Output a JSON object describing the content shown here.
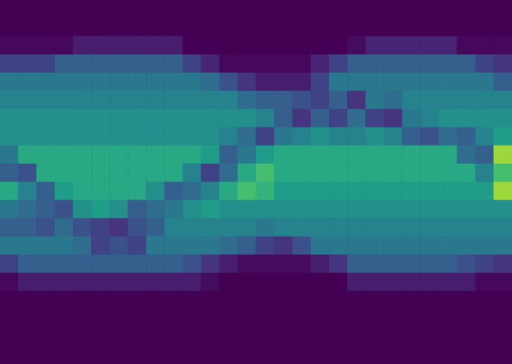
{
  "chart_data": {
    "type": "heatmap",
    "tick_labels": false,
    "grid": false,
    "color_range": [
      0,
      1
    ],
    "cells": [
      [
        0,
        0,
        0,
        0,
        0,
        0,
        0,
        0,
        0,
        0,
        0,
        0,
        0,
        0,
        0,
        0,
        0,
        0,
        0,
        0,
        0,
        0,
        0,
        0,
        0,
        0,
        0,
        0
      ],
      [
        0,
        0,
        0,
        0,
        0,
        0,
        0,
        0,
        0,
        0,
        0,
        0,
        0,
        0,
        0,
        0,
        0,
        0,
        0,
        0,
        0,
        0,
        0,
        0,
        0,
        0,
        0,
        0
      ],
      [
        0.02,
        0.02,
        0.02,
        0.02,
        0.08,
        0.08,
        0.08,
        0.08,
        0.08,
        0.08,
        0,
        0,
        0,
        0,
        0,
        0,
        0,
        0,
        0,
        0.03,
        0.1,
        0.1,
        0.1,
        0.1,
        0.1,
        0.02,
        0.02,
        0.02
      ],
      [
        0.2,
        0.2,
        0.2,
        0.3,
        0.3,
        0.3,
        0.3,
        0.3,
        0.3,
        0.3,
        0.2,
        0.1,
        0.02,
        0.02,
        0.02,
        0.02,
        0.02,
        0.1,
        0.2,
        0.3,
        0.3,
        0.3,
        0.3,
        0.3,
        0.3,
        0.3,
        0.2,
        0.15
      ],
      [
        0.4,
        0.4,
        0.4,
        0.4,
        0.4,
        0.4,
        0.4,
        0.4,
        0.4,
        0.4,
        0.4,
        0.35,
        0.25,
        0.15,
        0.08,
        0.08,
        0.08,
        0.2,
        0.4,
        0.4,
        0.4,
        0.4,
        0.4,
        0.4,
        0.4,
        0.4,
        0.4,
        0.3
      ],
      [
        0.45,
        0.45,
        0.45,
        0.45,
        0.45,
        0.45,
        0.45,
        0.45,
        0.45,
        0.45,
        0.45,
        0.45,
        0.45,
        0.35,
        0.3,
        0.3,
        0.25,
        0.2,
        0.3,
        0.15,
        0.4,
        0.35,
        0.45,
        0.45,
        0.45,
        0.45,
        0.45,
        0.45
      ],
      [
        0.5,
        0.5,
        0.5,
        0.5,
        0.5,
        0.5,
        0.5,
        0.5,
        0.5,
        0.5,
        0.5,
        0.5,
        0.5,
        0.5,
        0.45,
        0.3,
        0.15,
        0.3,
        0.2,
        0.35,
        0.2,
        0.15,
        0.4,
        0.45,
        0.5,
        0.5,
        0.5,
        0.5
      ],
      [
        0.5,
        0.5,
        0.5,
        0.5,
        0.5,
        0.5,
        0.5,
        0.5,
        0.5,
        0.5,
        0.5,
        0.5,
        0.45,
        0.35,
        0.2,
        0.4,
        0.45,
        0.5,
        0.45,
        0.45,
        0.5,
        0.45,
        0.3,
        0.25,
        0.35,
        0.3,
        0.45,
        0.55
      ],
      [
        0.4,
        0.6,
        0.6,
        0.6,
        0.6,
        0.6,
        0.6,
        0.6,
        0.6,
        0.6,
        0.6,
        0.55,
        0.3,
        0.4,
        0.55,
        0.6,
        0.6,
        0.6,
        0.6,
        0.6,
        0.6,
        0.6,
        0.6,
        0.6,
        0.6,
        0.35,
        0.3,
        0.85
      ],
      [
        0.3,
        0.25,
        0.6,
        0.6,
        0.6,
        0.6,
        0.6,
        0.6,
        0.6,
        0.6,
        0.45,
        0.2,
        0.35,
        0.6,
        0.7,
        0.6,
        0.6,
        0.6,
        0.6,
        0.6,
        0.6,
        0.6,
        0.6,
        0.6,
        0.6,
        0.6,
        0.45,
        0.7
      ],
      [
        0.6,
        0.45,
        0.3,
        0.55,
        0.6,
        0.6,
        0.6,
        0.6,
        0.5,
        0.3,
        0.35,
        0.45,
        0.6,
        0.7,
        0.65,
        0.55,
        0.55,
        0.55,
        0.55,
        0.55,
        0.55,
        0.55,
        0.55,
        0.55,
        0.55,
        0.55,
        0.55,
        0.85
      ],
      [
        0.4,
        0.35,
        0.3,
        0.25,
        0.5,
        0.55,
        0.5,
        0.3,
        0.35,
        0.4,
        0.5,
        0.55,
        0.5,
        0.5,
        0.5,
        0.5,
        0.5,
        0.5,
        0.5,
        0.5,
        0.5,
        0.5,
        0.5,
        0.5,
        0.5,
        0.5,
        0.5,
        0.5
      ],
      [
        0.3,
        0.3,
        0.25,
        0.35,
        0.25,
        0.2,
        0.15,
        0.25,
        0.3,
        0.45,
        0.45,
        0.45,
        0.45,
        0.45,
        0.4,
        0.45,
        0.45,
        0.45,
        0.45,
        0.45,
        0.45,
        0.45,
        0.45,
        0.45,
        0.45,
        0.45,
        0.45,
        0.45
      ],
      [
        0.4,
        0.4,
        0.4,
        0.4,
        0.35,
        0.2,
        0.25,
        0.2,
        0.4,
        0.4,
        0.4,
        0.4,
        0.35,
        0.3,
        0.2,
        0.15,
        0.25,
        0.4,
        0.4,
        0.4,
        0.4,
        0.4,
        0.4,
        0.4,
        0.4,
        0.4,
        0.4,
        0.4
      ],
      [
        0.2,
        0.3,
        0.3,
        0.3,
        0.3,
        0.3,
        0.3,
        0.3,
        0.3,
        0.3,
        0.25,
        0.15,
        0.08,
        0.03,
        0.03,
        0.03,
        0.03,
        0.08,
        0.15,
        0.3,
        0.3,
        0.3,
        0.3,
        0.3,
        0.3,
        0.25,
        0.2,
        0.15
      ],
      [
        0.02,
        0.08,
        0.08,
        0.08,
        0.08,
        0.08,
        0.08,
        0.08,
        0.08,
        0.08,
        0.08,
        0.03,
        0,
        0,
        0,
        0,
        0,
        0,
        0,
        0.08,
        0.08,
        0.08,
        0.08,
        0.08,
        0.08,
        0.08,
        0.02,
        0.02
      ],
      [
        0,
        0,
        0,
        0,
        0,
        0,
        0,
        0,
        0,
        0,
        0,
        0,
        0,
        0,
        0,
        0,
        0,
        0,
        0,
        0,
        0,
        0,
        0,
        0,
        0,
        0,
        0,
        0
      ],
      [
        0,
        0,
        0,
        0,
        0,
        0,
        0,
        0,
        0,
        0,
        0,
        0,
        0,
        0,
        0,
        0,
        0,
        0,
        0,
        0,
        0,
        0,
        0,
        0,
        0,
        0,
        0,
        0
      ],
      [
        0,
        0,
        0,
        0,
        0,
        0,
        0,
        0,
        0,
        0,
        0,
        0,
        0,
        0,
        0,
        0,
        0,
        0,
        0,
        0,
        0,
        0,
        0,
        0,
        0,
        0,
        0,
        0
      ],
      [
        0,
        0,
        0,
        0,
        0,
        0,
        0,
        0,
        0,
        0,
        0,
        0,
        0,
        0,
        0,
        0,
        0,
        0,
        0,
        0,
        0,
        0,
        0,
        0,
        0,
        0,
        0,
        0
      ]
    ]
  }
}
